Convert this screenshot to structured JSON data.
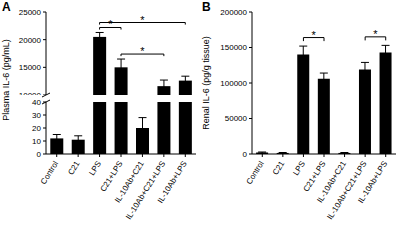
{
  "chart_data": [
    {
      "type": "bar",
      "title": "A",
      "y_label": "Plasma IL-6 (pg/mL)",
      "categories": [
        "Control",
        "C21",
        "LPS",
        "C21+LPS",
        "IL-10Ab+C21",
        "IL-10Ab+C21+LPS",
        "IL-10Ab+LPS"
      ],
      "values": [
        12,
        11,
        20500,
        15000,
        20,
        11600,
        12600
      ],
      "errors": [
        3,
        3,
        800,
        1500,
        8,
        1100,
        800
      ],
      "color": "#000000",
      "y_segments": [
        {
          "ylim": [
            0,
            40
          ],
          "yticks": [
            0,
            10,
            20,
            30,
            40
          ]
        },
        {
          "ylim": [
            10000,
            25000
          ],
          "yticks": [
            10000,
            15000,
            20000,
            25000
          ]
        }
      ],
      "comparisons": [
        {
          "from": "LPS",
          "to": "C21+LPS",
          "label": "*"
        },
        {
          "from": "LPS",
          "to": "IL-10Ab+LPS",
          "label": "*"
        },
        {
          "from": "C21+LPS",
          "to": "IL-10Ab+C21+LPS",
          "label": "*"
        }
      ]
    },
    {
      "type": "bar",
      "title": "B",
      "y_label": "Renal IL-6 (pg/g tissue)",
      "categories": [
        "Control",
        "C21",
        "LPS",
        "C21+LPS",
        "IL-10Ab+C21",
        "IL-10Ab+C21+LPS",
        "IL-10Ab+LPS"
      ],
      "values": [
        2000,
        1500,
        140000,
        106000,
        1500,
        119000,
        143000
      ],
      "errors": [
        800,
        600,
        12000,
        8000,
        600,
        10000,
        10000
      ],
      "color": "#000000",
      "ylim": [
        0,
        200000
      ],
      "yticks": [
        0,
        50000,
        100000,
        150000,
        200000
      ],
      "comparisons": [
        {
          "from": "LPS",
          "to": "C21+LPS",
          "label": "*"
        },
        {
          "from": "IL-10Ab+C21+LPS",
          "to": "IL-10Ab+LPS",
          "label": "*"
        }
      ]
    }
  ]
}
